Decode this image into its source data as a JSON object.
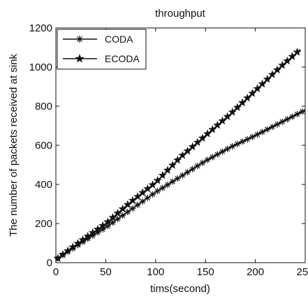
{
  "chart_data": {
    "type": "line",
    "title": "throughput",
    "xlabel": "tims(second)",
    "ylabel": "The number of packets received at sink",
    "xlim": [
      0,
      250
    ],
    "ylim": [
      0,
      1200
    ],
    "xticks": [
      "0",
      "50",
      "100",
      "150",
      "200",
      "250"
    ],
    "yticks": [
      "0",
      "200",
      "400",
      "600",
      "800",
      "1000",
      "1200"
    ],
    "xtick_values": [
      0,
      50,
      100,
      150,
      200,
      250
    ],
    "ytick_values": [
      0,
      200,
      400,
      600,
      800,
      1000,
      1200
    ],
    "grid": false,
    "legend_position": "top-left",
    "series": [
      {
        "name": "CODA",
        "marker": "asterisk",
        "x": [
          0,
          25,
          50,
          75,
          100,
          125,
          150,
          175,
          200,
          225,
          250
        ],
        "y": [
          15,
          100,
          180,
          270,
          360,
          440,
          520,
          590,
          650,
          715,
          780
        ]
      },
      {
        "name": "ECODA",
        "marker": "star",
        "x": [
          0,
          25,
          50,
          75,
          100,
          125,
          150,
          175,
          200,
          225,
          245
        ],
        "y": [
          15,
          110,
          200,
          310,
          410,
          540,
          650,
          760,
          880,
          1000,
          1090
        ]
      }
    ],
    "colors": {
      "line": "#111111",
      "background": "#ffffff"
    }
  }
}
